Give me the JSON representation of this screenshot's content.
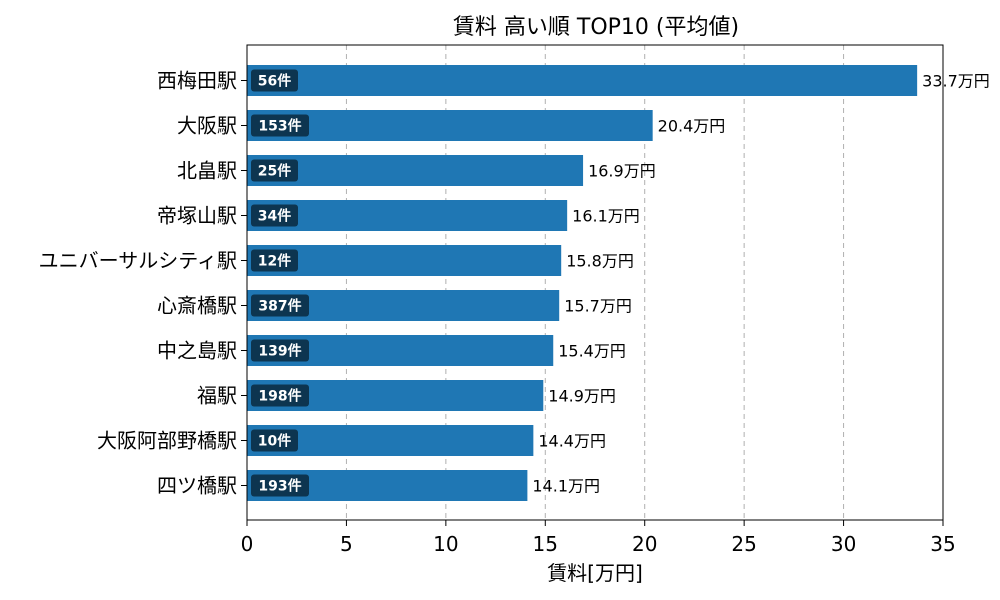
{
  "chart_data": {
    "type": "bar",
    "orientation": "horizontal",
    "title": "賃料 高い順 TOP10 (平均値)",
    "xlabel": "賃料[万円]",
    "ylabel": "",
    "xlim": [
      0,
      35
    ],
    "xticks": [
      0,
      5,
      10,
      15,
      20,
      25,
      30,
      35
    ],
    "grid": "x-dashed",
    "bar_color": "#1f77b4",
    "badge_color": "#0d3550",
    "categories": [
      "西梅田駅",
      "大阪駅",
      "北畠駅",
      "帝塚山駅",
      "ユニバーサルシティ駅",
      "心斎橋駅",
      "中之島駅",
      "福駅",
      "大阪阿部野橋駅",
      "四ツ橋駅"
    ],
    "values": [
      33.7,
      20.4,
      16.9,
      16.1,
      15.8,
      15.7,
      15.4,
      14.9,
      14.4,
      14.1
    ],
    "value_labels": [
      "33.7万円",
      "20.4万円",
      "16.9万円",
      "16.1万円",
      "15.8万円",
      "15.7万円",
      "15.4万円",
      "14.9万円",
      "14.4万円",
      "14.1万円"
    ],
    "counts": [
      "56件",
      "153件",
      "25件",
      "34件",
      "12件",
      "387件",
      "139件",
      "198件",
      "10件",
      "193件"
    ]
  }
}
